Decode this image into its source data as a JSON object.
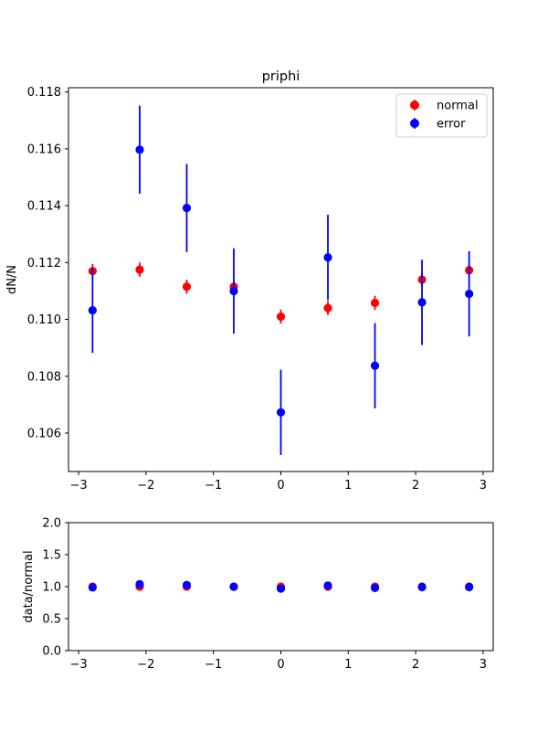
{
  "chart_data": [
    {
      "type": "scatter",
      "title": "priphi",
      "xlabel": "",
      "ylabel": "dN/N",
      "xlim": [
        -3.15,
        3.15
      ],
      "ylim": [
        0.10465,
        0.11815
      ],
      "xticks": [
        -3,
        -2,
        -1,
        0,
        1,
        2,
        3
      ],
      "xtick_labels": [
        "−3",
        "−2",
        "−1",
        "0",
        "1",
        "2",
        "3"
      ],
      "yticks": [
        0.106,
        0.108,
        0.11,
        0.112,
        0.114,
        0.116,
        0.118
      ],
      "ytick_labels": [
        "0.106",
        "0.108",
        "0.110",
        "0.112",
        "0.114",
        "0.116",
        "0.118"
      ],
      "legend_position": "top-right",
      "x": [
        -2.793,
        -2.094,
        -1.396,
        -0.698,
        0.0,
        0.698,
        1.396,
        2.094,
        2.793
      ],
      "series": [
        {
          "name": "normal",
          "color": "#ff0000",
          "values": [
            0.1117,
            0.11175,
            0.11115,
            0.11115,
            0.1101,
            0.1104,
            0.11058,
            0.1114,
            0.11173
          ],
          "errors": [
            0.00025,
            0.00025,
            0.00025,
            0.00025,
            0.00025,
            0.00025,
            0.00025,
            0.00025,
            0.00025
          ]
        },
        {
          "name": "error",
          "color": "#0000ff",
          "values": [
            0.11032,
            0.11597,
            0.11392,
            0.111,
            0.10673,
            0.11218,
            0.10837,
            0.1106,
            0.1109
          ],
          "errors": [
            0.0015,
            0.00155,
            0.00155,
            0.0015,
            0.0015,
            0.0015,
            0.0015,
            0.0015,
            0.0015
          ]
        }
      ]
    },
    {
      "type": "scatter",
      "title": "",
      "xlabel": "",
      "ylabel": "data/normal",
      "xlim": [
        -3.15,
        3.15
      ],
      "ylim": [
        0.0,
        2.0
      ],
      "xticks": [
        -3,
        -2,
        -1,
        0,
        1,
        2,
        3
      ],
      "xtick_labels": [
        "−3",
        "−2",
        "−1",
        "0",
        "1",
        "2",
        "3"
      ],
      "yticks": [
        0.0,
        0.5,
        1.0,
        1.5,
        2.0
      ],
      "ytick_labels": [
        "0.0",
        "0.5",
        "1.0",
        "1.5",
        "2.0"
      ],
      "x": [
        -2.793,
        -2.094,
        -1.396,
        -0.698,
        0.0,
        0.698,
        1.396,
        2.094,
        2.793
      ],
      "series": [
        {
          "name": "normal",
          "color": "#ff0000",
          "values": [
            1.0,
            1.0,
            1.0,
            1.0,
            1.0,
            1.0,
            1.0,
            1.0,
            1.0
          ]
        },
        {
          "name": "error",
          "color": "#0000ff",
          "values": [
            0.988,
            1.038,
            1.025,
            0.999,
            0.969,
            1.016,
            0.98,
            0.993,
            0.993
          ]
        }
      ]
    }
  ]
}
